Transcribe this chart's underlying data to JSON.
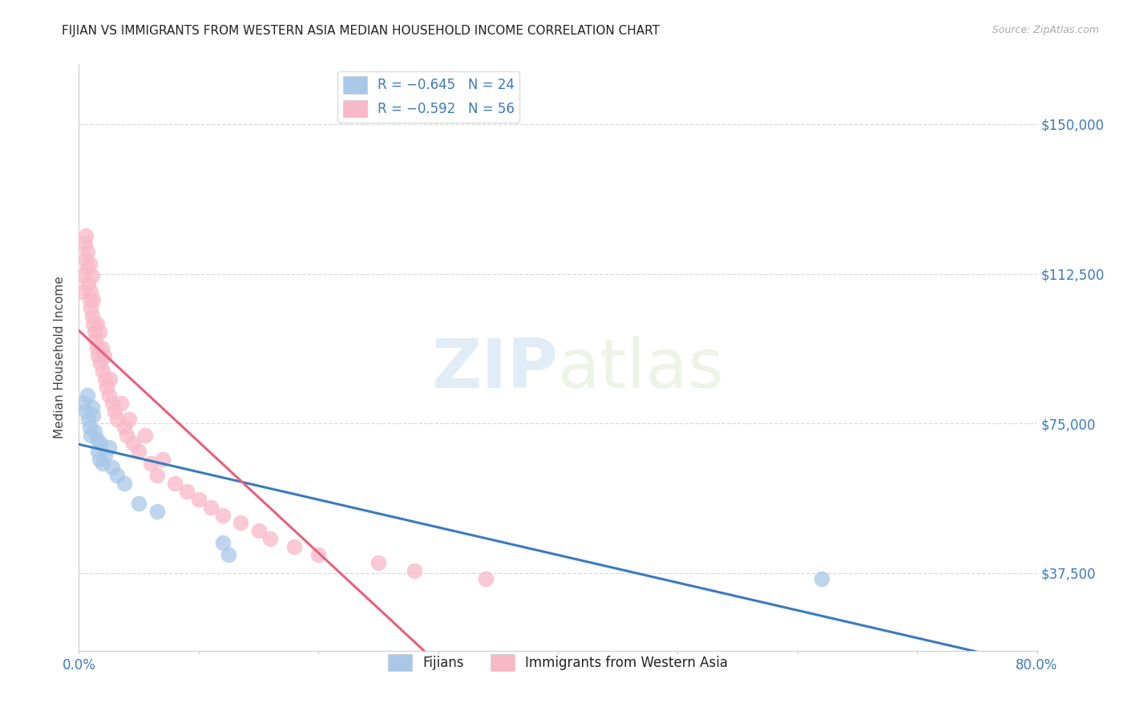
{
  "title": "FIJIAN VS IMMIGRANTS FROM WESTERN ASIA MEDIAN HOUSEHOLD INCOME CORRELATION CHART",
  "source": "Source: ZipAtlas.com",
  "ylabel": "Median Household Income",
  "yticks": [
    37500,
    75000,
    112500,
    150000
  ],
  "ytick_labels": [
    "$37,500",
    "$75,000",
    "$112,500",
    "$150,000"
  ],
  "xlim": [
    0.0,
    0.8
  ],
  "ylim": [
    18000,
    165000
  ],
  "legend_entries": [
    {
      "label": "R = −0.645   N = 24",
      "color": "#a8c8e8"
    },
    {
      "label": "R = −0.592   N = 56",
      "color": "#f9b8c8"
    }
  ],
  "legend_labels_bottom": [
    "Fijians",
    "Immigrants from Western Asia"
  ],
  "fijian_color": "#a8c8e8",
  "western_asia_color": "#f9b8c8",
  "fijian_line_color": "#3a7abf",
  "western_asia_line_color": "#e8607a",
  "watermark_zip": "ZIP",
  "watermark_atlas": "atlas",
  "fijian_x": [
    0.004,
    0.006,
    0.007,
    0.008,
    0.009,
    0.01,
    0.011,
    0.012,
    0.013,
    0.015,
    0.016,
    0.017,
    0.018,
    0.02,
    0.022,
    0.025,
    0.028,
    0.032,
    0.038,
    0.05,
    0.065,
    0.12,
    0.125,
    0.62
  ],
  "fijian_y": [
    80000,
    78000,
    82000,
    76000,
    74000,
    72000,
    79000,
    77000,
    73000,
    71000,
    68000,
    66000,
    70000,
    65000,
    67000,
    69000,
    64000,
    62000,
    60000,
    55000,
    53000,
    45000,
    42000,
    36000
  ],
  "western_asia_x": [
    0.003,
    0.004,
    0.005,
    0.006,
    0.006,
    0.007,
    0.007,
    0.008,
    0.009,
    0.009,
    0.01,
    0.01,
    0.011,
    0.011,
    0.012,
    0.012,
    0.013,
    0.014,
    0.015,
    0.015,
    0.016,
    0.017,
    0.018,
    0.019,
    0.02,
    0.021,
    0.022,
    0.023,
    0.025,
    0.026,
    0.028,
    0.03,
    0.032,
    0.035,
    0.038,
    0.04,
    0.042,
    0.045,
    0.05,
    0.055,
    0.06,
    0.065,
    0.07,
    0.08,
    0.09,
    0.1,
    0.11,
    0.12,
    0.135,
    0.15,
    0.16,
    0.18,
    0.2,
    0.25,
    0.28,
    0.34
  ],
  "western_asia_y": [
    108000,
    112000,
    120000,
    116000,
    122000,
    114000,
    118000,
    110000,
    106000,
    115000,
    104000,
    108000,
    102000,
    112000,
    100000,
    106000,
    98000,
    96000,
    94000,
    100000,
    92000,
    98000,
    90000,
    94000,
    88000,
    92000,
    86000,
    84000,
    82000,
    86000,
    80000,
    78000,
    76000,
    80000,
    74000,
    72000,
    76000,
    70000,
    68000,
    72000,
    65000,
    62000,
    66000,
    60000,
    58000,
    56000,
    54000,
    52000,
    50000,
    48000,
    46000,
    44000,
    42000,
    40000,
    38000,
    36000
  ]
}
